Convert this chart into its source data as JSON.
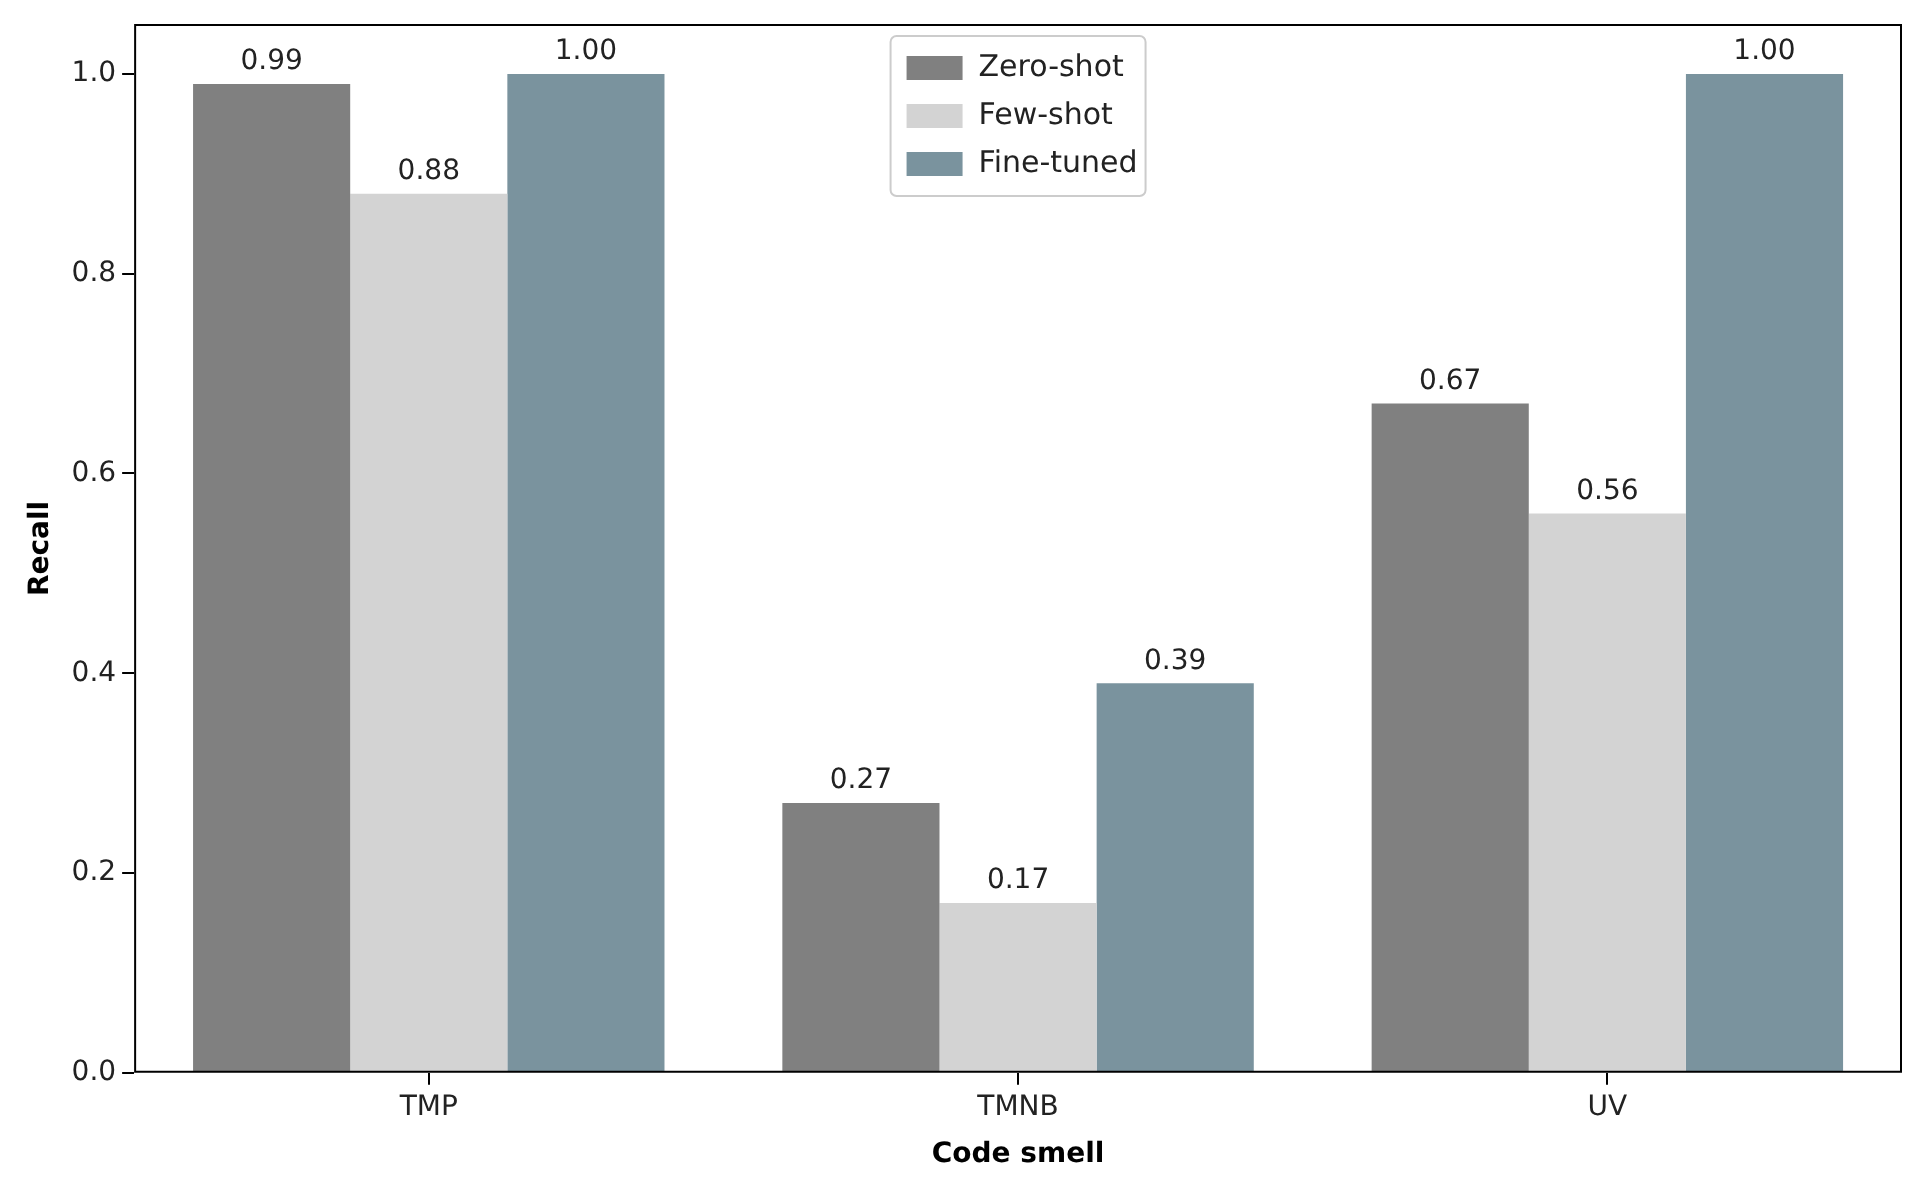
{
  "chart_data": {
    "type": "bar",
    "xlabel": "Code smell",
    "ylabel": "Recall",
    "categories": [
      "TMP",
      "TMNB",
      "UV"
    ],
    "series": [
      {
        "name": "Zero-shot",
        "color": "#808080",
        "values": [
          0.99,
          0.27,
          0.67
        ],
        "value_labels": [
          "0.99",
          "0.27",
          "0.67"
        ]
      },
      {
        "name": "Few-shot",
        "color": "#d3d3d3",
        "values": [
          0.88,
          0.17,
          0.56
        ],
        "value_labels": [
          "0.88",
          "0.17",
          "0.56"
        ]
      },
      {
        "name": "Fine-tuned",
        "color": "#7a939e",
        "values": [
          1.0,
          0.39,
          1.0
        ],
        "value_labels": [
          "1.00",
          "0.39",
          "1.00"
        ]
      }
    ],
    "ylim": [
      0,
      1.05
    ],
    "yticks": [
      {
        "value": 0,
        "label": "0.0"
      },
      {
        "value": 0.2,
        "label": "0.2"
      },
      {
        "value": 0.4,
        "label": "0.4"
      },
      {
        "value": 0.6,
        "label": "0.6"
      },
      {
        "value": 0.8,
        "label": "0.8"
      },
      {
        "value": 1.0,
        "label": "1.0"
      }
    ],
    "grid": false,
    "legend": "top"
  }
}
